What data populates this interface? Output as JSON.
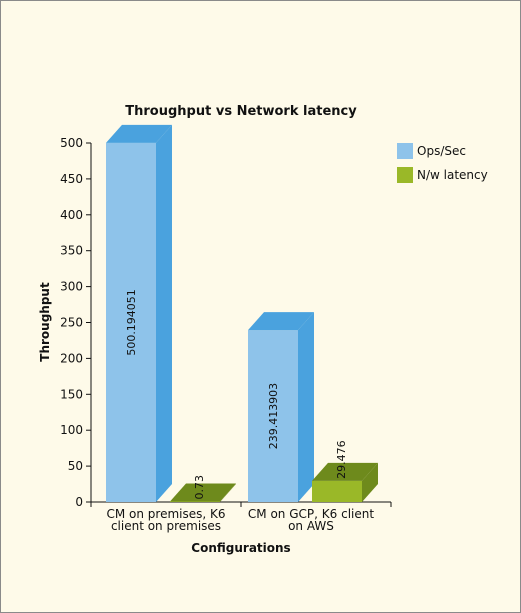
{
  "chart_data": {
    "type": "bar",
    "title": "Throughput vs Network latency",
    "xlabel": "Configurations",
    "ylabel": "Throughput",
    "categories": [
      [
        "CM on premises, K6",
        "client on premises"
      ],
      [
        "CM on GCP, K6 client",
        "on AWS"
      ]
    ],
    "series": [
      {
        "name": "Ops/Sec",
        "values": [
          500.194051,
          239.413903
        ],
        "labels": [
          "500.194051",
          "239.413903"
        ]
      },
      {
        "name": "N/w latency",
        "values": [
          0.73,
          29.476
        ],
        "labels": [
          "0.73",
          "29.476"
        ]
      }
    ],
    "ylim": [
      0,
      500
    ],
    "yticks": [
      0,
      50,
      100,
      150,
      200,
      250,
      300,
      350,
      400,
      450,
      500
    ],
    "grid": false,
    "legend": "top-right",
    "style": "3d-column"
  },
  "colors": {
    "ops_front": "#8ec3ea",
    "ops_side": "#4aa2de",
    "ops_top": "#4aa2de",
    "lat_front": "#9ab828",
    "lat_side": "#6e8a1c",
    "lat_top": "#6e8a1c",
    "background": "#fefae9",
    "axis": "#111111"
  }
}
